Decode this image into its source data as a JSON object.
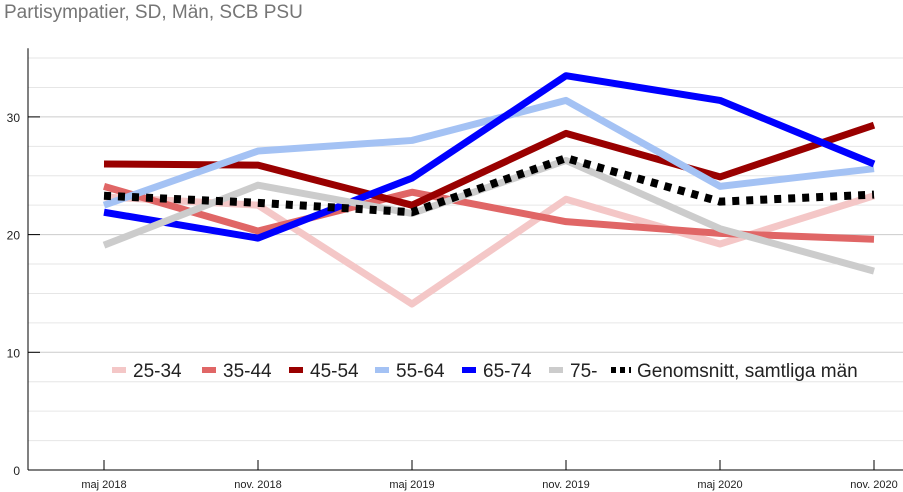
{
  "chart_data": {
    "type": "line",
    "title": "Partisympatier, SD, Män, SCB PSU",
    "xlabel": "",
    "ylabel": "",
    "categories": [
      "maj 2018",
      "nov. 2018",
      "maj 2019",
      "nov. 2019",
      "maj 2020",
      "nov. 2020"
    ],
    "ylim": [
      0,
      36
    ],
    "yticks": [
      0,
      10,
      20,
      30
    ],
    "grid": true,
    "legend_position": "bottom-inside",
    "series": [
      {
        "name": "25-34",
        "color": "#f4c7c7",
        "dash": false,
        "values": [
          23.2,
          22.5,
          14.1,
          23.0,
          19.2,
          23.3
        ]
      },
      {
        "name": "35-44",
        "color": "#e06666",
        "dash": false,
        "values": [
          24.1,
          20.3,
          23.6,
          21.1,
          20.1,
          19.6
        ]
      },
      {
        "name": "45-54",
        "color": "#990000",
        "dash": false,
        "values": [
          26.0,
          25.9,
          22.5,
          28.6,
          24.9,
          29.3
        ]
      },
      {
        "name": "55-64",
        "color": "#a4c2f4",
        "dash": false,
        "values": [
          22.5,
          27.1,
          28.0,
          31.4,
          24.1,
          25.6
        ]
      },
      {
        "name": "65-74",
        "color": "#0000ff",
        "dash": false,
        "values": [
          21.9,
          19.7,
          24.8,
          33.5,
          31.4,
          26.0
        ]
      },
      {
        "name": "75-",
        "color": "#cccccc",
        "dash": false,
        "values": [
          19.1,
          24.2,
          21.8,
          26.3,
          20.5,
          16.9
        ]
      },
      {
        "name": "Genomsnitt, samtliga män",
        "color": "#000000",
        "dash": true,
        "values": [
          23.3,
          22.7,
          21.9,
          26.5,
          22.8,
          23.4
        ]
      }
    ]
  }
}
